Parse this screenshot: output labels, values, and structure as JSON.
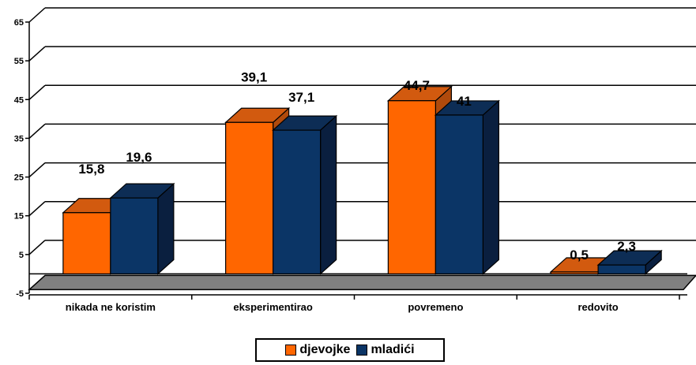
{
  "colors": {
    "girls": "#ff6600",
    "girls_top": "#d25a0f",
    "girls_side": "#b04a0c",
    "boys": "#0b3566",
    "boys_top": "#0d2d55",
    "boys_side": "#0a1f3f",
    "floor": "#808080",
    "axis": "#000000"
  },
  "chart_data": {
    "type": "bar",
    "categories": [
      "nikada ne koristim",
      "eksperimentirao",
      "povremeno",
      "redovito"
    ],
    "series": [
      {
        "name": "djevojke",
        "values": [
          15.8,
          39.1,
          44.7,
          0.5
        ],
        "labels": [
          "15,8",
          "39,1",
          "44,7",
          "0,5"
        ]
      },
      {
        "name": "mladići",
        "values": [
          19.6,
          37.1,
          41,
          2.3
        ],
        "labels": [
          "19,6",
          "37,1",
          "41",
          "2,3"
        ]
      }
    ],
    "yticks": [
      "65",
      "55",
      "45",
      "35",
      "25",
      "15",
      "5",
      "-5"
    ],
    "ytick_values": [
      65,
      55,
      45,
      35,
      25,
      15,
      5,
      -5
    ],
    "ylim": [
      -5,
      65
    ],
    "grid": true,
    "legend_position": "bottom"
  }
}
